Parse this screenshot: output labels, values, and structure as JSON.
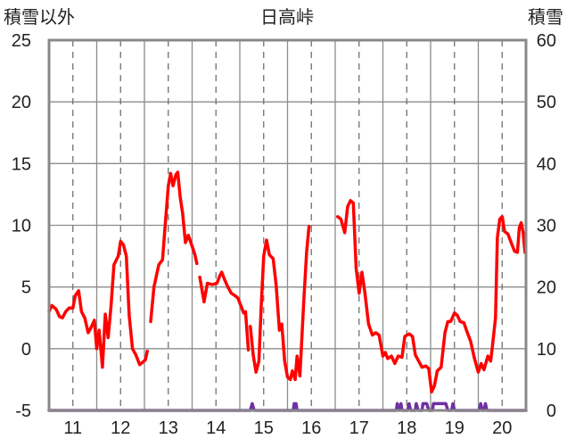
{
  "chart_data": {
    "type": "line",
    "title": "日高峠",
    "left_axis_label": "積雪以外",
    "right_axis_label": "積雪",
    "left_ylim": [
      -5,
      25
    ],
    "left_yticks": [
      -5,
      0,
      5,
      10,
      15,
      20,
      25
    ],
    "right_ylim": [
      0,
      60
    ],
    "right_yticks": [
      0,
      10,
      20,
      30,
      40,
      50,
      60
    ],
    "xlim": [
      10.5,
      20.5
    ],
    "x_ticks": [
      11,
      12,
      13,
      14,
      15,
      16,
      17,
      18,
      19,
      20
    ],
    "x_tick_labels": [
      "11",
      "12",
      "13",
      "14",
      "15",
      "16",
      "17",
      "18",
      "19",
      "20"
    ],
    "grid": true,
    "series": [
      {
        "axis": "left",
        "color": "#ff0000",
        "segments": [
          [
            [
              10.5,
              3.0
            ],
            [
              10.56,
              3.5
            ],
            [
              10.65,
              3.2
            ],
            [
              10.72,
              2.6
            ],
            [
              10.78,
              2.5
            ],
            [
              10.85,
              3.0
            ],
            [
              10.92,
              3.3
            ],
            [
              11.0,
              3.3
            ],
            [
              11.05,
              4.3
            ],
            [
              11.12,
              4.7
            ],
            [
              11.18,
              3.0
            ],
            [
              11.25,
              2.5
            ],
            [
              11.32,
              1.3
            ],
            [
              11.38,
              1.7
            ],
            [
              11.45,
              2.3
            ],
            [
              11.5,
              0.0
            ],
            [
              11.55,
              1.5
            ],
            [
              11.62,
              -1.5
            ],
            [
              11.68,
              2.8
            ],
            [
              11.74,
              0.9
            ],
            [
              11.8,
              3.5
            ],
            [
              11.86,
              6.8
            ],
            [
              11.95,
              7.5
            ],
            [
              12.0,
              8.7
            ],
            [
              12.06,
              8.4
            ],
            [
              12.12,
              7.5
            ],
            [
              12.18,
              2.7
            ],
            [
              12.25,
              0.0
            ],
            [
              12.32,
              -0.5
            ],
            [
              12.4,
              -1.3
            ],
            [
              12.52,
              -0.9
            ],
            [
              12.56,
              -0.2
            ]
          ],
          [
            [
              12.63,
              2.2
            ],
            [
              12.7,
              5.0
            ],
            [
              12.8,
              6.8
            ],
            [
              12.88,
              7.2
            ],
            [
              12.94,
              10.2
            ],
            [
              13.0,
              13.2
            ],
            [
              13.05,
              14.2
            ],
            [
              13.1,
              13.2
            ],
            [
              13.16,
              14.1
            ],
            [
              13.2,
              14.3
            ],
            [
              13.25,
              12.3
            ],
            [
              13.3,
              11.0
            ],
            [
              13.36,
              8.6
            ],
            [
              13.42,
              9.2
            ],
            [
              13.5,
              8.3
            ],
            [
              13.56,
              7.6
            ],
            [
              13.6,
              6.9
            ]
          ],
          [
            [
              13.66,
              5.8
            ],
            [
              13.75,
              3.8
            ],
            [
              13.82,
              5.3
            ],
            [
              13.92,
              5.2
            ],
            [
              14.02,
              5.3
            ],
            [
              14.08,
              5.9
            ],
            [
              14.12,
              6.2
            ],
            [
              14.18,
              5.6
            ],
            [
              14.25,
              5.0
            ],
            [
              14.32,
              4.5
            ],
            [
              14.4,
              4.3
            ],
            [
              14.46,
              4.1
            ],
            [
              14.52,
              3.5
            ],
            [
              14.58,
              2.9
            ],
            [
              14.62,
              3.0
            ],
            [
              14.68,
              -0.1
            ]
          ],
          [
            [
              14.72,
              1.8
            ],
            [
              14.78,
              -0.5
            ],
            [
              14.84,
              -1.9
            ],
            [
              14.9,
              -1.0
            ],
            [
              14.95,
              3.6
            ],
            [
              15.0,
              7.5
            ],
            [
              15.06,
              8.8
            ],
            [
              15.12,
              7.6
            ],
            [
              15.2,
              7.3
            ],
            [
              15.26,
              5.2
            ],
            [
              15.33,
              1.5
            ],
            [
              15.38,
              2.0
            ],
            [
              15.44,
              -1.0
            ],
            [
              15.5,
              -2.3
            ],
            [
              15.56,
              -2.5
            ],
            [
              15.6,
              -1.8
            ],
            [
              15.66,
              -2.5
            ],
            [
              15.7,
              -0.6
            ],
            [
              15.76,
              -2.2
            ],
            [
              15.84,
              3.8
            ],
            [
              15.9,
              7.8
            ],
            [
              15.95,
              9.9
            ]
          ],
          [
            [
              16.55,
              10.7
            ],
            [
              16.62,
              10.5
            ],
            [
              16.7,
              9.4
            ],
            [
              16.76,
              11.5
            ],
            [
              16.82,
              12.0
            ],
            [
              16.88,
              11.8
            ],
            [
              16.94,
              6.5
            ],
            [
              17.0,
              4.5
            ],
            [
              17.06,
              6.2
            ],
            [
              17.12,
              4.6
            ],
            [
              17.2,
              2.0
            ],
            [
              17.28,
              1.1
            ],
            [
              17.35,
              1.3
            ],
            [
              17.42,
              1.1
            ],
            [
              17.5,
              -0.6
            ],
            [
              17.55,
              -0.3
            ],
            [
              17.6,
              -0.8
            ],
            [
              17.68,
              -0.6
            ],
            [
              17.75,
              -1.2
            ],
            [
              17.82,
              -0.6
            ],
            [
              17.9,
              -0.7
            ],
            [
              17.96,
              1.0
            ],
            [
              18.05,
              1.2
            ],
            [
              18.12,
              1.0
            ],
            [
              18.18,
              -0.5
            ],
            [
              18.25,
              -1.0
            ],
            [
              18.32,
              -1.5
            ],
            [
              18.4,
              -1.4
            ],
            [
              18.46,
              -1.6
            ],
            [
              18.52,
              -3.5
            ],
            [
              18.58,
              -3.0
            ],
            [
              18.64,
              -1.8
            ],
            [
              18.72,
              -1.5
            ],
            [
              18.8,
              1.3
            ],
            [
              18.86,
              2.2
            ],
            [
              18.92,
              2.2
            ],
            [
              19.0,
              2.9
            ],
            [
              19.06,
              2.7
            ],
            [
              19.12,
              2.2
            ],
            [
              19.2,
              2.1
            ],
            [
              19.26,
              1.4
            ],
            [
              19.34,
              0.6
            ],
            [
              19.42,
              -0.8
            ],
            [
              19.5,
              -1.9
            ],
            [
              19.56,
              -1.2
            ],
            [
              19.62,
              -1.7
            ],
            [
              19.7,
              -0.6
            ],
            [
              19.76,
              -1.0
            ],
            [
              19.8,
              0.3
            ],
            [
              19.86,
              2.5
            ],
            [
              19.9,
              9.0
            ],
            [
              19.95,
              10.5
            ],
            [
              20.0,
              10.7
            ],
            [
              20.05,
              9.5
            ],
            [
              20.12,
              9.3
            ],
            [
              20.2,
              8.5
            ],
            [
              20.26,
              7.9
            ],
            [
              20.32,
              7.8
            ],
            [
              20.36,
              9.8
            ],
            [
              20.4,
              10.2
            ],
            [
              20.44,
              9.4
            ],
            [
              20.48,
              7.8
            ]
          ]
        ]
      },
      {
        "axis": "right",
        "color": "#7030a0",
        "segments": [
          [
            [
              10.5,
              0
            ],
            [
              14.72,
              0
            ],
            [
              14.76,
              1.1
            ],
            [
              14.8,
              0
            ],
            [
              15.62,
              0
            ],
            [
              15.64,
              1.1
            ],
            [
              15.66,
              0
            ],
            [
              15.68,
              1.1
            ],
            [
              15.7,
              0
            ],
            [
              17.78,
              0
            ],
            [
              17.8,
              1.1
            ],
            [
              17.84,
              0
            ],
            [
              17.88,
              1.1
            ],
            [
              17.9,
              0
            ],
            [
              18.02,
              0
            ],
            [
              18.05,
              1.1
            ],
            [
              18.08,
              0
            ],
            [
              18.18,
              0
            ],
            [
              18.2,
              1.1
            ],
            [
              18.24,
              0
            ],
            [
              18.32,
              0
            ],
            [
              18.34,
              1.1
            ],
            [
              18.42,
              1.1
            ],
            [
              18.46,
              0
            ],
            [
              18.54,
              0
            ],
            [
              18.56,
              1.1
            ],
            [
              18.82,
              1.1
            ],
            [
              18.86,
              0
            ],
            [
              18.94,
              0
            ],
            [
              18.97,
              1.1
            ],
            [
              19.0,
              0
            ],
            [
              19.52,
              0
            ],
            [
              19.55,
              1.1
            ],
            [
              19.58,
              0
            ],
            [
              19.62,
              0
            ],
            [
              19.65,
              1.1
            ],
            [
              19.68,
              0
            ],
            [
              20.5,
              0
            ]
          ]
        ]
      }
    ]
  }
}
